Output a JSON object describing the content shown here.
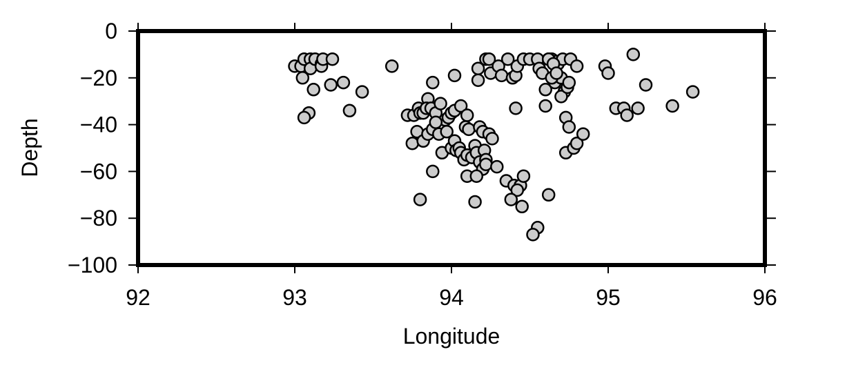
{
  "chart_data": {
    "type": "scatter",
    "title": "",
    "xlabel": "Longitude",
    "ylabel": "Depth",
    "xlim": [
      92,
      96
    ],
    "ylim": [
      -100,
      0
    ],
    "x_ticks": [
      "92",
      "93",
      "94",
      "95",
      "96"
    ],
    "y_ticks": [
      "0",
      "−20",
      "−40",
      "−60",
      "−80",
      "−100"
    ],
    "grid": false,
    "legend": "none",
    "marker_fill": "#cccccc",
    "marker_edge": "#000000",
    "series": [
      {
        "points": [
          [
            93.0,
            -15
          ],
          [
            93.04,
            -15
          ],
          [
            93.05,
            -20
          ],
          [
            93.06,
            -12
          ],
          [
            93.1,
            -12
          ],
          [
            93.1,
            -16
          ],
          [
            93.12,
            -25
          ],
          [
            93.13,
            -12
          ],
          [
            93.17,
            -14
          ],
          [
            93.17,
            -15
          ],
          [
            93.18,
            -12
          ],
          [
            93.24,
            -12
          ],
          [
            93.23,
            -23
          ],
          [
            93.31,
            -22
          ],
          [
            93.35,
            -34
          ],
          [
            93.43,
            -26
          ],
          [
            93.62,
            -15
          ],
          [
            93.09,
            -35
          ],
          [
            93.06,
            -37
          ],
          [
            93.72,
            -36
          ],
          [
            93.76,
            -36
          ],
          [
            93.79,
            -33
          ],
          [
            93.8,
            -35
          ],
          [
            93.82,
            -35
          ],
          [
            93.85,
            -29
          ],
          [
            93.84,
            -33
          ],
          [
            93.87,
            -33
          ],
          [
            93.9,
            -35
          ],
          [
            93.88,
            -22
          ],
          [
            93.93,
            -31
          ],
          [
            93.96,
            -38
          ],
          [
            93.98,
            -37
          ],
          [
            94.0,
            -35
          ],
          [
            94.02,
            -34
          ],
          [
            94.02,
            -19
          ],
          [
            94.06,
            -32
          ],
          [
            94.1,
            -36
          ],
          [
            93.75,
            -48
          ],
          [
            93.78,
            -43
          ],
          [
            93.82,
            -47
          ],
          [
            93.85,
            -44
          ],
          [
            93.88,
            -42
          ],
          [
            93.9,
            -39
          ],
          [
            93.92,
            -44
          ],
          [
            93.94,
            -52
          ],
          [
            93.97,
            -43
          ],
          [
            94.0,
            -50
          ],
          [
            94.02,
            -47
          ],
          [
            94.03,
            -51
          ],
          [
            94.05,
            -50
          ],
          [
            94.06,
            -52
          ],
          [
            94.08,
            -55
          ],
          [
            94.09,
            -41
          ],
          [
            94.1,
            -53
          ],
          [
            94.11,
            -42
          ],
          [
            94.13,
            -54
          ],
          [
            94.15,
            -49
          ],
          [
            94.16,
            -52
          ],
          [
            94.18,
            -56
          ],
          [
            94.18,
            -41
          ],
          [
            94.2,
            -43
          ],
          [
            94.21,
            -51
          ],
          [
            94.22,
            -55
          ],
          [
            94.24,
            -44
          ],
          [
            94.26,
            -46
          ],
          [
            94.2,
            -59
          ],
          [
            94.22,
            -57
          ],
          [
            94.29,
            -58
          ],
          [
            94.1,
            -62
          ],
          [
            94.16,
            -62
          ],
          [
            93.88,
            -60
          ],
          [
            93.8,
            -72
          ],
          [
            94.15,
            -73
          ],
          [
            94.17,
            -21
          ],
          [
            94.17,
            -16
          ],
          [
            94.22,
            -12
          ],
          [
            94.24,
            -12
          ],
          [
            94.25,
            -18
          ],
          [
            94.3,
            -15
          ],
          [
            94.32,
            -19
          ],
          [
            94.36,
            -12
          ],
          [
            94.39,
            -20
          ],
          [
            94.41,
            -19
          ],
          [
            94.42,
            -15
          ],
          [
            94.41,
            -33
          ],
          [
            94.46,
            -12
          ],
          [
            94.5,
            -12
          ],
          [
            94.55,
            -12
          ],
          [
            94.56,
            -16
          ],
          [
            94.58,
            -18
          ],
          [
            94.6,
            -25
          ],
          [
            94.6,
            -32
          ],
          [
            94.62,
            -12
          ],
          [
            94.64,
            -12
          ],
          [
            94.65,
            -20
          ],
          [
            94.66,
            -22
          ],
          [
            94.67,
            -13
          ],
          [
            94.68,
            -14
          ],
          [
            94.7,
            -20
          ],
          [
            94.71,
            -12
          ],
          [
            94.72,
            -26
          ],
          [
            94.7,
            -28
          ],
          [
            94.74,
            -24
          ],
          [
            94.75,
            -22
          ],
          [
            94.76,
            -12
          ],
          [
            94.73,
            -37
          ],
          [
            94.75,
            -41
          ],
          [
            94.8,
            -15
          ],
          [
            94.62,
            -12
          ],
          [
            94.64,
            -20
          ],
          [
            94.65,
            -14
          ],
          [
            94.67,
            -18
          ],
          [
            94.35,
            -64
          ],
          [
            94.4,
            -66
          ],
          [
            94.44,
            -66
          ],
          [
            94.46,
            -62
          ],
          [
            94.42,
            -68
          ],
          [
            94.38,
            -72
          ],
          [
            94.45,
            -75
          ],
          [
            94.62,
            -70
          ],
          [
            94.55,
            -84
          ],
          [
            94.52,
            -87
          ],
          [
            94.73,
            -52
          ],
          [
            94.78,
            -50
          ],
          [
            94.8,
            -48
          ],
          [
            94.84,
            -44
          ],
          [
            94.98,
            -15
          ],
          [
            95.0,
            -18
          ],
          [
            95.05,
            -33
          ],
          [
            95.1,
            -33
          ],
          [
            95.12,
            -36
          ],
          [
            95.16,
            -10
          ],
          [
            95.19,
            -33
          ],
          [
            95.24,
            -23
          ],
          [
            95.41,
            -32
          ],
          [
            95.54,
            -26
          ]
        ]
      }
    ]
  }
}
